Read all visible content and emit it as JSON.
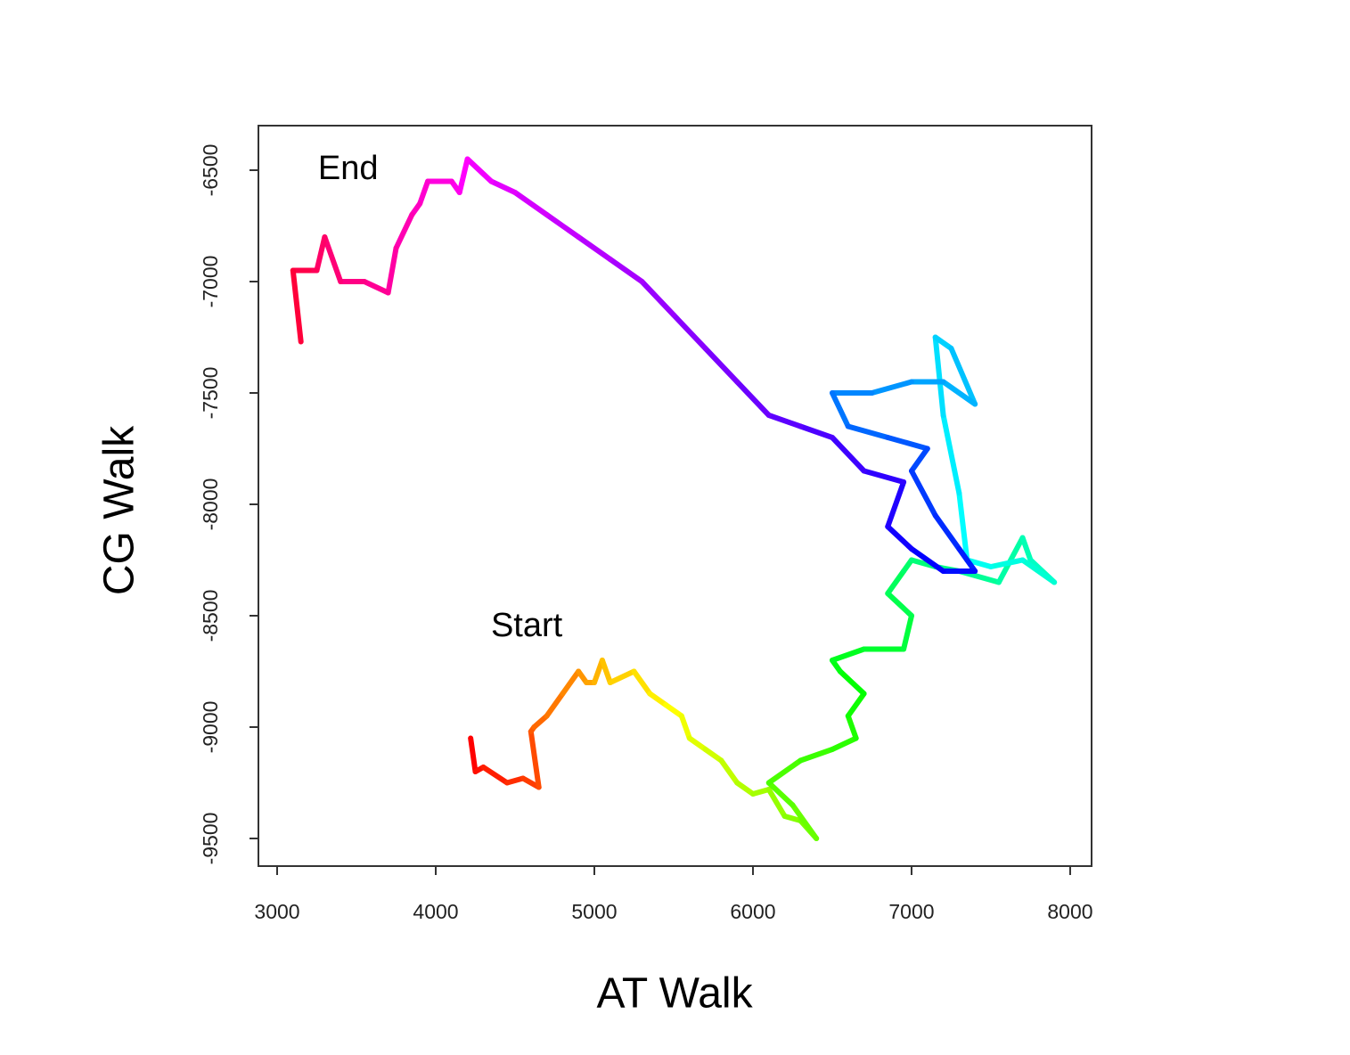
{
  "chart_data": {
    "type": "line",
    "xlabel": "AT Walk",
    "ylabel": "CG Walk",
    "xlim": [
      2882,
      8135
    ],
    "ylim": [
      -9624,
      -6300
    ],
    "xticks": [
      3000,
      4000,
      5000,
      6000,
      7000,
      8000
    ],
    "yticks": [
      -9500,
      -9000,
      -8500,
      -8000,
      -7500,
      -7000,
      -6500
    ],
    "color_scale": "rainbow",
    "annotations": [
      {
        "text": "End",
        "x": 3258,
        "y": -6500
      },
      {
        "text": "Start",
        "x": 4348,
        "y": -8552
      }
    ],
    "x": [
      4220,
      4250,
      4300,
      4450,
      4550,
      4650,
      4600,
      4620,
      4700,
      4800,
      4900,
      4950,
      5000,
      5050,
      5100,
      5250,
      5350,
      5450,
      5550,
      5600,
      5700,
      5800,
      5900,
      6000,
      6100,
      6200,
      6300,
      6400,
      6250,
      6100,
      6300,
      6500,
      6650,
      6600,
      6700,
      6550,
      6500,
      6700,
      6950,
      7000,
      6850,
      6950,
      7000,
      7150,
      7300,
      7550,
      7700,
      7750,
      7900,
      7700,
      7500,
      7350,
      7300,
      7200,
      7150,
      7250,
      7400,
      7200,
      7000,
      6750,
      6500,
      6600,
      6850,
      7100,
      7000,
      7150,
      7300,
      7400,
      7200,
      7000,
      6850,
      6950,
      6700,
      6500,
      6300,
      6100,
      5900,
      5700,
      5500,
      5300,
      5100,
      4900,
      4700,
      4500,
      4350,
      4200,
      4150,
      4100,
      3950,
      3900,
      3850,
      3750,
      3700,
      3550,
      3400,
      3300,
      3250,
      3200,
      3100,
      3150
    ],
    "y": [
      -9050,
      -9200,
      -9180,
      -9250,
      -9230,
      -9270,
      -9020,
      -9000,
      -8950,
      -8850,
      -8750,
      -8800,
      -8800,
      -8700,
      -8800,
      -8750,
      -8850,
      -8900,
      -8950,
      -9050,
      -9100,
      -9150,
      -9250,
      -9300,
      -9280,
      -9400,
      -9420,
      -9500,
      -9350,
      -9250,
      -9150,
      -9100,
      -9050,
      -8950,
      -8850,
      -8750,
      -8700,
      -8650,
      -8650,
      -8500,
      -8400,
      -8300,
      -8250,
      -8280,
      -8300,
      -8350,
      -8150,
      -8250,
      -8350,
      -8250,
      -8280,
      -8250,
      -7950,
      -7600,
      -7250,
      -7300,
      -7550,
      -7450,
      -7450,
      -7500,
      -7500,
      -7650,
      -7700,
      -7750,
      -7850,
      -8050,
      -8200,
      -8300,
      -8300,
      -8200,
      -8100,
      -7900,
      -7850,
      -7700,
      -7650,
      -7600,
      -7450,
      -7300,
      -7150,
      -7000,
      -6900,
      -6800,
      -6700,
      -6600,
      -6550,
      -6450,
      -6600,
      -6550,
      -6550,
      -6650,
      -6700,
      -6850,
      -7050,
      -7000,
      -7000,
      -6800,
      -6950,
      -6950,
      -6950,
      -7270
    ]
  }
}
